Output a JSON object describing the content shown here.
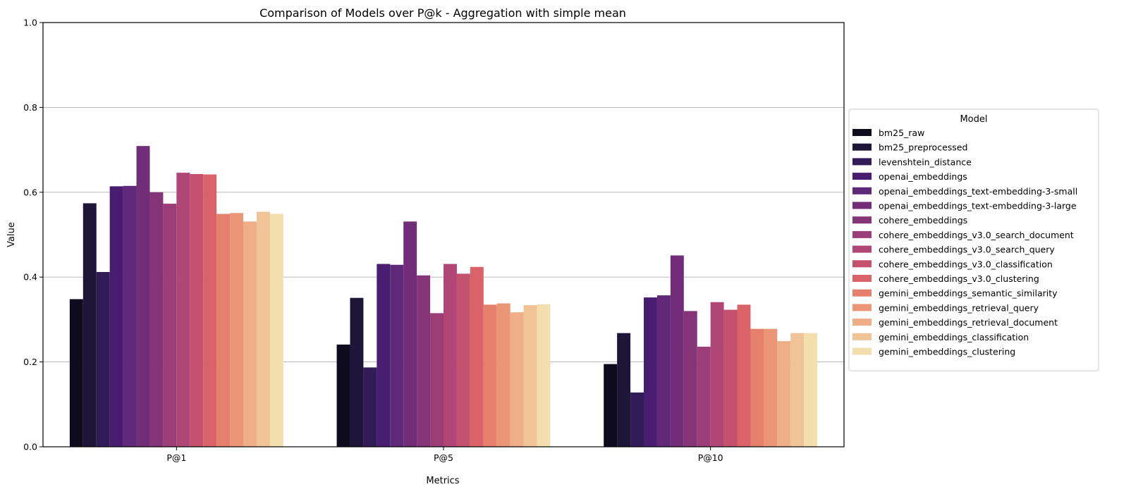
{
  "chart_data": {
    "type": "bar",
    "title": "Comparison of Models over P@k - Aggregation with simple mean",
    "xlabel": "Metrics",
    "ylabel": "Value",
    "ylim": [
      0,
      1.0
    ],
    "yticks": [
      "0.0",
      "0.2",
      "0.4",
      "0.6",
      "0.8",
      "1.0"
    ],
    "grid": "y",
    "legend_title": "Model",
    "legend_position": "right",
    "categories": [
      "P@1",
      "P@5",
      "P@10"
    ],
    "series": [
      {
        "name": "bm25_raw",
        "color": "#0e0b1e",
        "values": [
          0.348,
          0.241,
          0.195
        ]
      },
      {
        "name": "bm25_preprocessed",
        "color": "#1e1638",
        "values": [
          0.574,
          0.351,
          0.268
        ]
      },
      {
        "name": "levenshtein_distance",
        "color": "#311c58",
        "values": [
          0.412,
          0.187,
          0.128
        ]
      },
      {
        "name": "openai_embeddings",
        "color": "#481c6e",
        "values": [
          0.614,
          0.431,
          0.352
        ]
      },
      {
        "name": "openai_embeddings_text-embedding-3-small",
        "color": "#5f2878",
        "values": [
          0.615,
          0.429,
          0.357
        ]
      },
      {
        "name": "openai_embeddings_text-embedding-3-large",
        "color": "#722d79",
        "values": [
          0.709,
          0.531,
          0.451
        ]
      },
      {
        "name": "cohere_embeddings",
        "color": "#853478",
        "values": [
          0.6,
          0.404,
          0.32
        ]
      },
      {
        "name": "cohere_embeddings_v3.0_search_document",
        "color": "#9b3e78",
        "values": [
          0.573,
          0.315,
          0.236
        ]
      },
      {
        "name": "cohere_embeddings_v3.0_search_query",
        "color": "#b04675",
        "values": [
          0.646,
          0.431,
          0.341
        ]
      },
      {
        "name": "cohere_embeddings_v3.0_classification",
        "color": "#c4526e",
        "values": [
          0.643,
          0.408,
          0.323
        ]
      },
      {
        "name": "cohere_embeddings_v3.0_clustering",
        "color": "#da6269",
        "values": [
          0.642,
          0.424,
          0.335
        ]
      },
      {
        "name": "gemini_embeddings_semantic_similarity",
        "color": "#e5806c",
        "values": [
          0.549,
          0.335,
          0.278
        ]
      },
      {
        "name": "gemini_embeddings_retrieval_query",
        "color": "#ea9676",
        "values": [
          0.551,
          0.338,
          0.278
        ]
      },
      {
        "name": "gemini_embeddings_retrieval_document",
        "color": "#edae88",
        "values": [
          0.531,
          0.317,
          0.249
        ]
      },
      {
        "name": "gemini_embeddings_classification",
        "color": "#f0c497",
        "values": [
          0.554,
          0.334,
          0.268
        ]
      },
      {
        "name": "gemini_embeddings_clustering",
        "color": "#f3dfae",
        "values": [
          0.549,
          0.336,
          0.268
        ]
      }
    ]
  }
}
